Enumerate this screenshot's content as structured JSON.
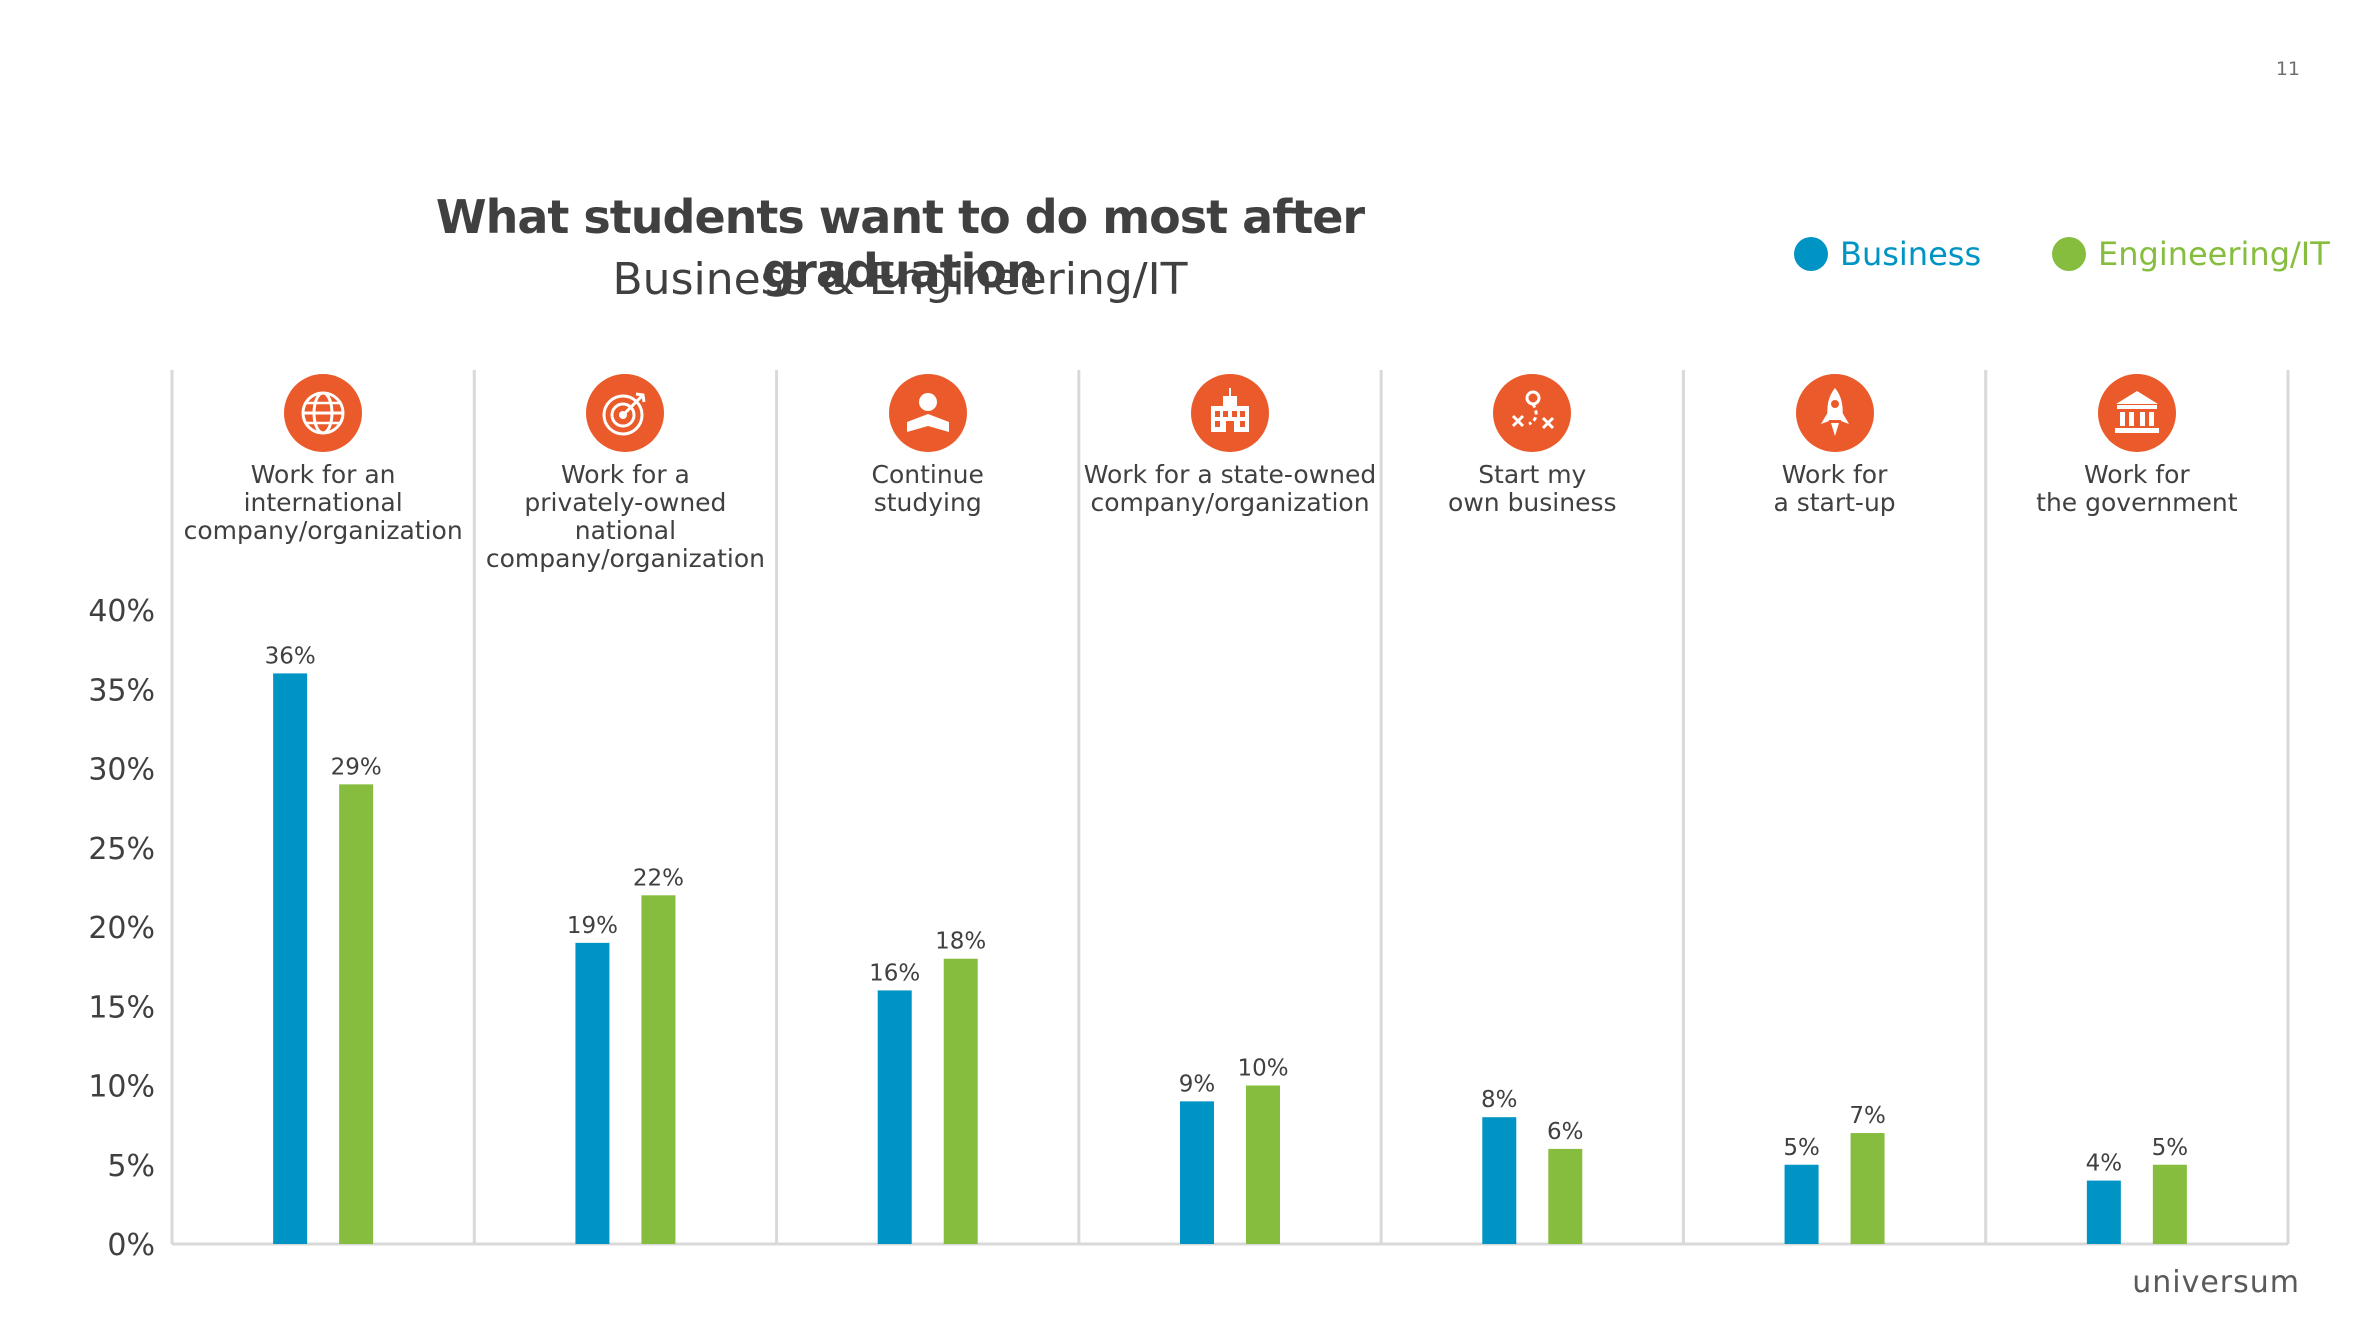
{
  "page_number": "11",
  "colors": {
    "business": "#0094c4",
    "engineering": "#86bd3f",
    "icon_bg": "#ea5a2a",
    "grid": "#d9d9d9"
  },
  "logo_text": "universum",
  "legend": [
    {
      "name": "Business",
      "color": "#0094c4"
    },
    {
      "name": "Engineering/IT",
      "color": "#86bd3f"
    }
  ],
  "chart_data": {
    "type": "bar",
    "title": "What students want to do most after graduation",
    "subtitle": "Business & Engineering/IT",
    "categories": [
      {
        "label": [
          "Work for an international",
          "company/organization"
        ],
        "icon": "globe-icon"
      },
      {
        "label": [
          "Work for a",
          "privately-owned national",
          "company/organization"
        ],
        "icon": "target-icon"
      },
      {
        "label": [
          "Continue",
          "studying"
        ],
        "icon": "student-icon"
      },
      {
        "label": [
          "Work for a state-owned",
          "company/organization"
        ],
        "icon": "building-icon"
      },
      {
        "label": [
          "Start my",
          "own business"
        ],
        "icon": "strategy-icon"
      },
      {
        "label": [
          "Work for",
          "a start-up"
        ],
        "icon": "rocket-icon"
      },
      {
        "label": [
          "Work for",
          "the government"
        ],
        "icon": "government-icon"
      }
    ],
    "series": [
      {
        "name": "Business",
        "values": [
          36,
          19,
          16,
          9,
          8,
          5,
          4
        ],
        "labels": [
          "36%",
          "19%",
          "16%",
          "9%",
          "8%",
          "5%",
          "4%"
        ]
      },
      {
        "name": "Engineering/IT",
        "values": [
          29,
          22,
          18,
          10,
          6,
          7,
          5
        ],
        "labels": [
          "29%",
          "22%",
          "18%",
          "10%",
          "6%",
          "7%",
          "5%"
        ]
      }
    ],
    "yticks": [
      {
        "value": 0,
        "label": "0%"
      },
      {
        "value": 5,
        "label": "5%"
      },
      {
        "value": 10,
        "label": "10%"
      },
      {
        "value": 15,
        "label": "15%"
      },
      {
        "value": 20,
        "label": "20%"
      },
      {
        "value": 25,
        "label": "25%"
      },
      {
        "value": 30,
        "label": "30%"
      },
      {
        "value": 35,
        "label": "35%"
      },
      {
        "value": 40,
        "label": "40%"
      }
    ],
    "ylim": [
      0,
      40
    ],
    "xlabel": "",
    "ylabel": ""
  }
}
